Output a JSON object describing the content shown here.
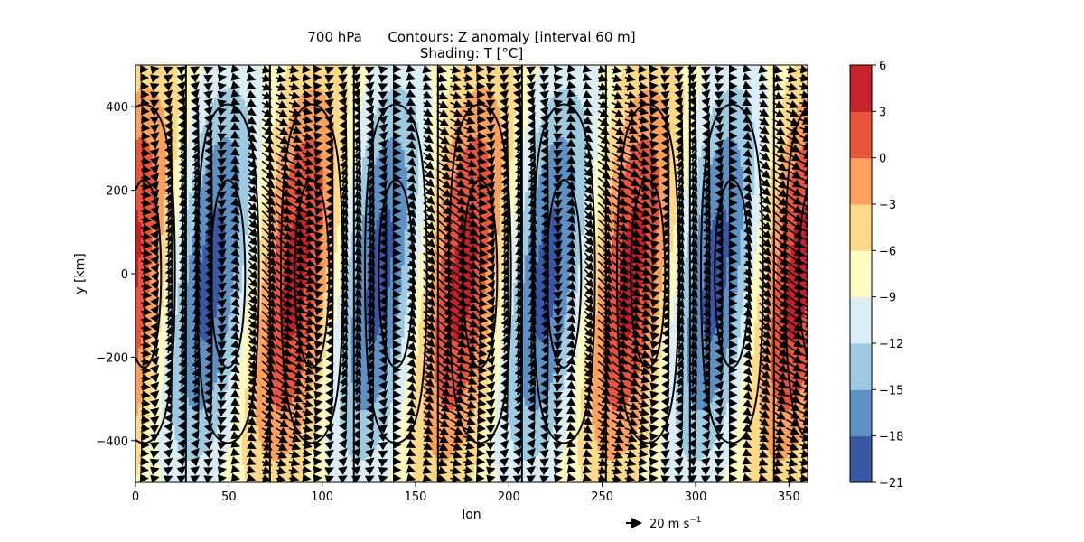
{
  "chart_data": {
    "type": "contour",
    "title_line1": "700 hPa      Contours: Z anomaly [interval 60 m]",
    "title_line2": "Shading: T [°C]",
    "xlabel": "lon",
    "ylabel": "y [km]",
    "xlim": [
      0,
      360
    ],
    "ylim": [
      -500,
      500
    ],
    "xticks": [
      0,
      50,
      100,
      150,
      200,
      250,
      300,
      350
    ],
    "yticks": [
      -400,
      -200,
      0,
      200,
      400
    ],
    "wave_periods": 4,
    "colorbar": {
      "levels": [
        -21,
        -18,
        -15,
        -12,
        -9,
        -6,
        -3,
        0,
        3,
        6
      ],
      "colors": [
        "#3a57a6",
        "#5e90c4",
        "#9ecae1",
        "#dbeef6",
        "#fefcc3",
        "#fed98a",
        "#fca05c",
        "#e8553a",
        "#c7212a"
      ]
    },
    "quiver_key": {
      "text": "20 m s",
      "superscript": "−1",
      "magnitude": 20
    }
  }
}
